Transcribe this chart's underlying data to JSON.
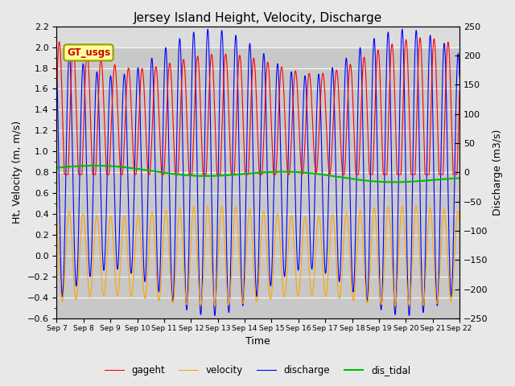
{
  "title": "Jersey Island Height, Velocity, Discharge",
  "xlabel": "Time",
  "ylabel_left": "Ht, Velocity (m, m/s)",
  "ylabel_right": "Discharge (m3/s)",
  "ylim_left": [
    -0.6,
    2.2
  ],
  "ylim_right": [
    -250,
    250
  ],
  "x_tick_labels": [
    "Sep 7",
    "Sep 8",
    "Sep 9",
    "Sep 10",
    "Sep 11",
    "Sep 12",
    "Sep 13",
    "Sep 14",
    "Sep 15",
    "Sep 16",
    "Sep 17",
    "Sep 18",
    "Sep 19",
    "Sep 20",
    "Sep 21",
    "Sep 22"
  ],
  "legend_label": "GT_usgs",
  "colors": {
    "gageht": "#ff0000",
    "velocity": "#ffa500",
    "discharge": "#0000ff",
    "dis_tidal": "#00bb00"
  },
  "background_color": "#e8e8e8",
  "plot_bg_color": "#c8c8c8",
  "plot_bg_top_color": "#dcdcdc",
  "title_fontsize": 11,
  "axis_fontsize": 9,
  "tick_fontsize": 8
}
